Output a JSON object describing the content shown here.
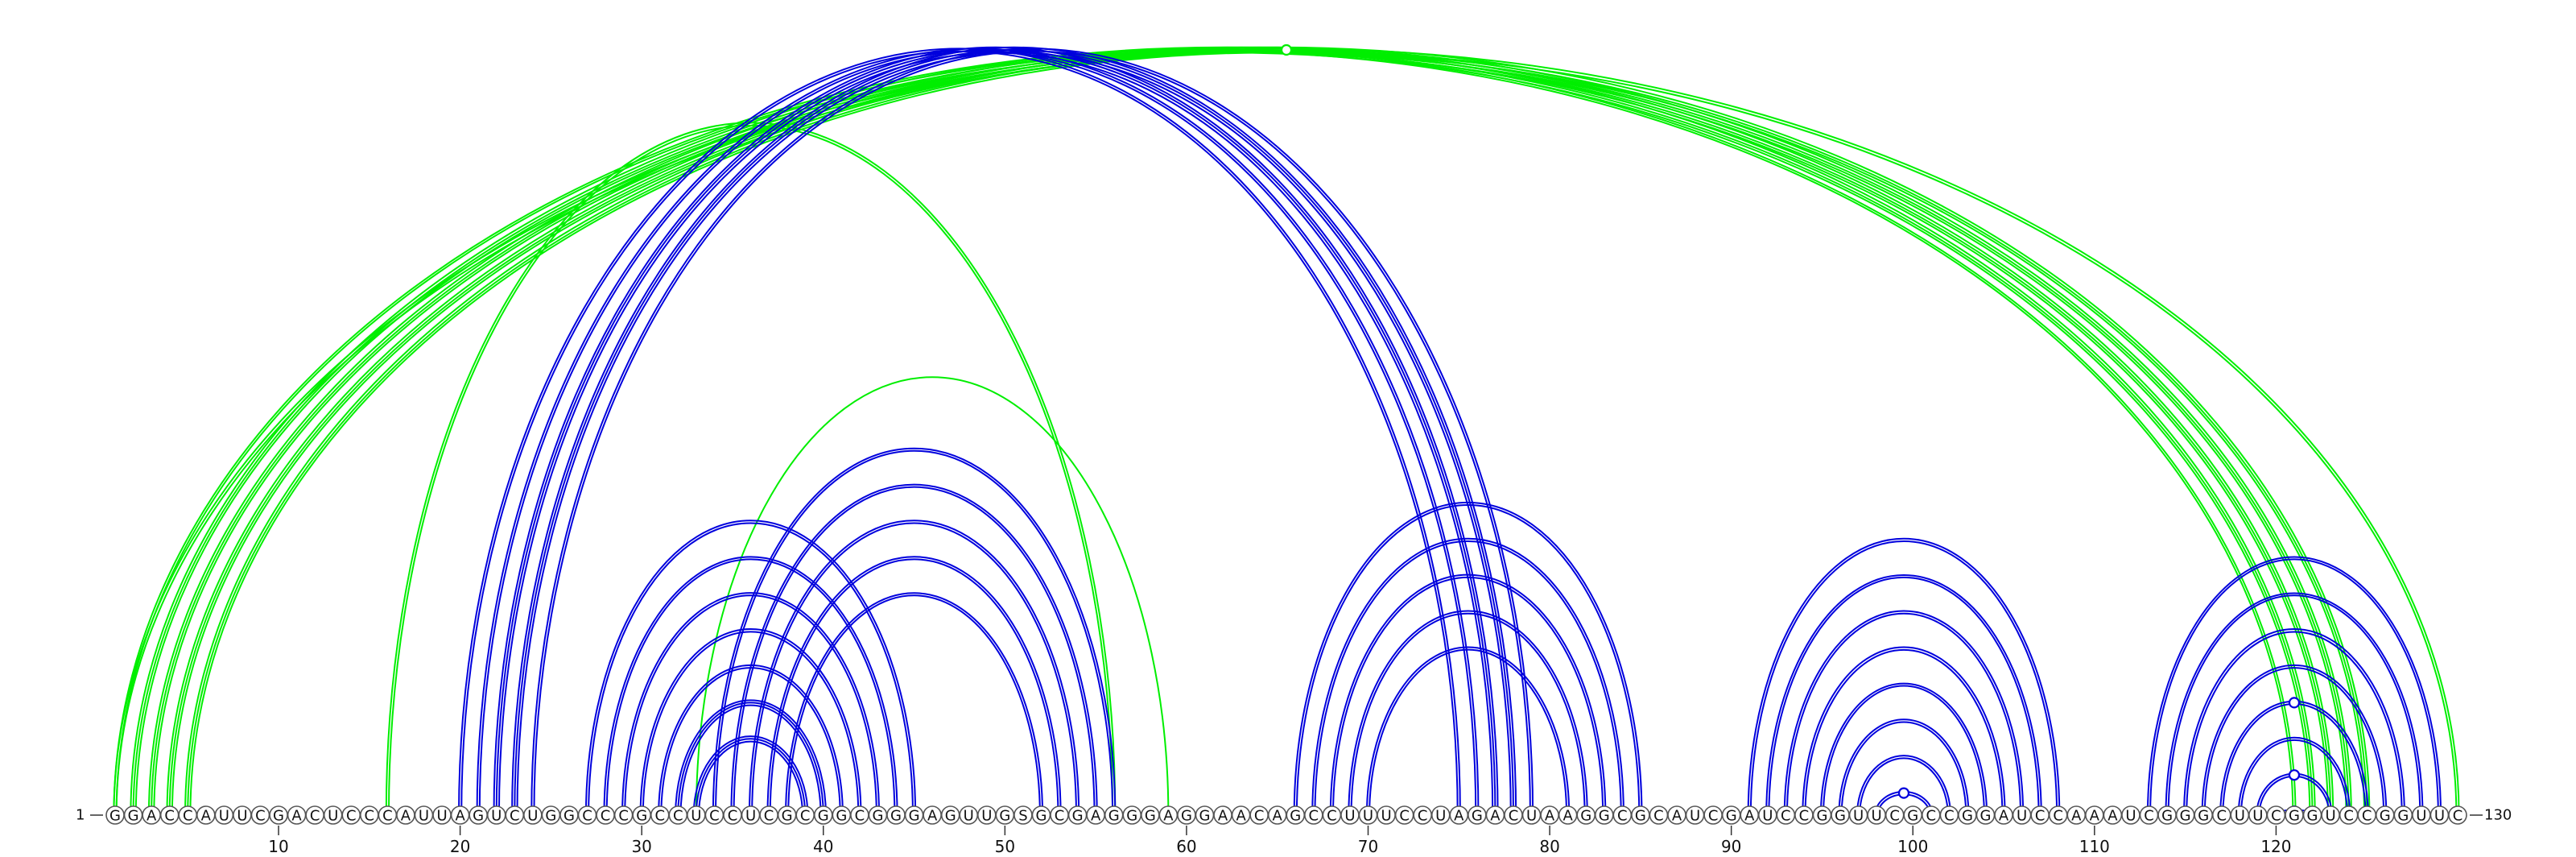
{
  "diagram": {
    "sequence": "GGACCAUUCGACUCCCAUUAGUCUGGCCCGCCUCCUCGCGGCGGGAGUUGSGCGAGGGAGGAACAGCCUUUCCUAGACUAAGGCGCAUCGAUCCGGUUCGCCGGAUCCAAAUCGGGCUUCGGUCCGGUUC",
    "start_label": "1",
    "end_label": "130",
    "ticks": [
      10,
      20,
      30,
      40,
      50,
      60,
      70,
      80,
      90,
      100,
      110,
      120
    ],
    "colors": {
      "blue": "#0000dd",
      "green": "#00ee00"
    },
    "arcs": [
      {
        "color": "green",
        "i": 1,
        "j": 121,
        "lines": 2
      },
      {
        "color": "green",
        "i": 2,
        "j": 122,
        "lines": 3
      },
      {
        "color": "green",
        "i": 3,
        "j": 123,
        "lines": 3
      },
      {
        "color": "green",
        "i": 4,
        "j": 124,
        "lines": 3
      },
      {
        "color": "green",
        "i": 5,
        "j": 125,
        "lines": 3
      },
      {
        "color": "green",
        "i": 1,
        "j": 130,
        "lines": 2
      },
      {
        "color": "green",
        "i": 16,
        "j": 56,
        "lines": 2
      },
      {
        "color": "green",
        "i": 33,
        "j": 59,
        "lines": 1
      },
      {
        "color": "blue",
        "i": 20,
        "j": 75,
        "lines": 2
      },
      {
        "color": "blue",
        "i": 21,
        "j": 76,
        "lines": 2
      },
      {
        "color": "blue",
        "i": 22,
        "j": 77,
        "lines": 3
      },
      {
        "color": "blue",
        "i": 23,
        "j": 78,
        "lines": 3
      },
      {
        "color": "blue",
        "i": 24,
        "j": 79,
        "lines": 2
      },
      {
        "color": "blue",
        "i": 27,
        "j": 45,
        "lines": 2
      },
      {
        "color": "blue",
        "i": 28,
        "j": 44,
        "lines": 2
      },
      {
        "color": "blue",
        "i": 29,
        "j": 43,
        "lines": 2
      },
      {
        "color": "blue",
        "i": 30,
        "j": 42,
        "lines": 2
      },
      {
        "color": "blue",
        "i": 31,
        "j": 41,
        "lines": 2
      },
      {
        "color": "blue",
        "i": 32,
        "j": 40,
        "lines": 3
      },
      {
        "color": "blue",
        "i": 33,
        "j": 39,
        "lines": 3
      },
      {
        "color": "blue",
        "i": 34,
        "j": 56,
        "lines": 2
      },
      {
        "color": "blue",
        "i": 35,
        "j": 55,
        "lines": 2
      },
      {
        "color": "blue",
        "i": 36,
        "j": 54,
        "lines": 2
      },
      {
        "color": "blue",
        "i": 37,
        "j": 53,
        "lines": 2
      },
      {
        "color": "blue",
        "i": 38,
        "j": 52,
        "lines": 2
      },
      {
        "color": "blue",
        "i": 66,
        "j": 85,
        "lines": 2
      },
      {
        "color": "blue",
        "i": 67,
        "j": 84,
        "lines": 2
      },
      {
        "color": "blue",
        "i": 68,
        "j": 83,
        "lines": 2
      },
      {
        "color": "blue",
        "i": 69,
        "j": 82,
        "lines": 2
      },
      {
        "color": "blue",
        "i": 70,
        "j": 81,
        "lines": 2
      },
      {
        "color": "blue",
        "i": 91,
        "j": 108,
        "lines": 2
      },
      {
        "color": "blue",
        "i": 92,
        "j": 107,
        "lines": 2
      },
      {
        "color": "blue",
        "i": 93,
        "j": 106,
        "lines": 2
      },
      {
        "color": "blue",
        "i": 94,
        "j": 105,
        "lines": 2
      },
      {
        "color": "blue",
        "i": 95,
        "j": 104,
        "lines": 2
      },
      {
        "color": "blue",
        "i": 96,
        "j": 103,
        "lines": 2
      },
      {
        "color": "blue",
        "i": 97,
        "j": 102,
        "lines": 2
      },
      {
        "color": "blue",
        "i": 98,
        "j": 101,
        "lines": 2
      },
      {
        "color": "blue",
        "i": 113,
        "j": 129,
        "lines": 2
      },
      {
        "color": "blue",
        "i": 114,
        "j": 128,
        "lines": 2
      },
      {
        "color": "blue",
        "i": 115,
        "j": 127,
        "lines": 2
      },
      {
        "color": "blue",
        "i": 116,
        "j": 126,
        "lines": 2
      },
      {
        "color": "blue",
        "i": 117,
        "j": 125,
        "lines": 2
      },
      {
        "color": "blue",
        "i": 118,
        "j": 124,
        "lines": 2
      },
      {
        "color": "blue",
        "i": 119,
        "j": 123,
        "lines": 2
      },
      {
        "color": "blue",
        "i": 120,
        "j": 122,
        "lines": 2
      }
    ],
    "markers": [
      {
        "color": "green",
        "i": 1,
        "j": 130
      },
      {
        "color": "blue",
        "i": 98,
        "j": 101
      },
      {
        "color": "blue",
        "i": 117,
        "j": 125
      },
      {
        "color": "blue",
        "i": 119,
        "j": 123
      },
      {
        "color": "blue",
        "i": 120,
        "j": 122
      }
    ]
  }
}
